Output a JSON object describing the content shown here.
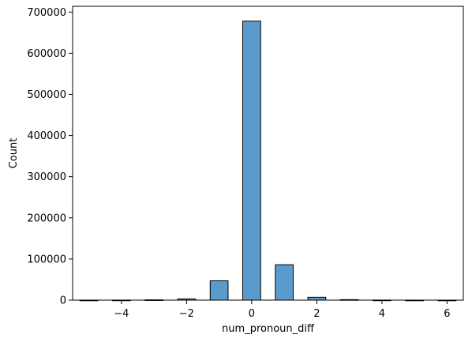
{
  "chart_data": {
    "type": "bar",
    "xlabel": "num_pronoun_diff",
    "ylabel": "Count",
    "xlim": [
      -5.5,
      6.5
    ],
    "ylim": [
      0,
      714000
    ],
    "xticks": [
      -4,
      -2,
      0,
      2,
      4,
      6
    ],
    "xtick_labels": [
      "−4",
      "−2",
      "0",
      "2",
      "4",
      "6"
    ],
    "yticks": [
      0,
      100000,
      200000,
      300000,
      400000,
      500000,
      600000,
      700000
    ],
    "ytick_labels": [
      "0",
      "100000",
      "200000",
      "300000",
      "400000",
      "500000",
      "600000",
      "700000"
    ],
    "bar_width": 0.55,
    "bars": [
      {
        "x": -5,
        "count": 50
      },
      {
        "x": -4,
        "count": 150
      },
      {
        "x": -3,
        "count": 700
      },
      {
        "x": -2,
        "count": 3000
      },
      {
        "x": -1,
        "count": 47000
      },
      {
        "x": 0,
        "count": 678000
      },
      {
        "x": 1,
        "count": 86000
      },
      {
        "x": 2,
        "count": 7000
      },
      {
        "x": 3,
        "count": 1200
      },
      {
        "x": 4,
        "count": 200
      },
      {
        "x": 5,
        "count": 50
      },
      {
        "x": 6,
        "count": 20
      }
    ],
    "bar_color": "#5b9bcb",
    "edge_color": "#000000",
    "grid": false,
    "legend": "none"
  }
}
